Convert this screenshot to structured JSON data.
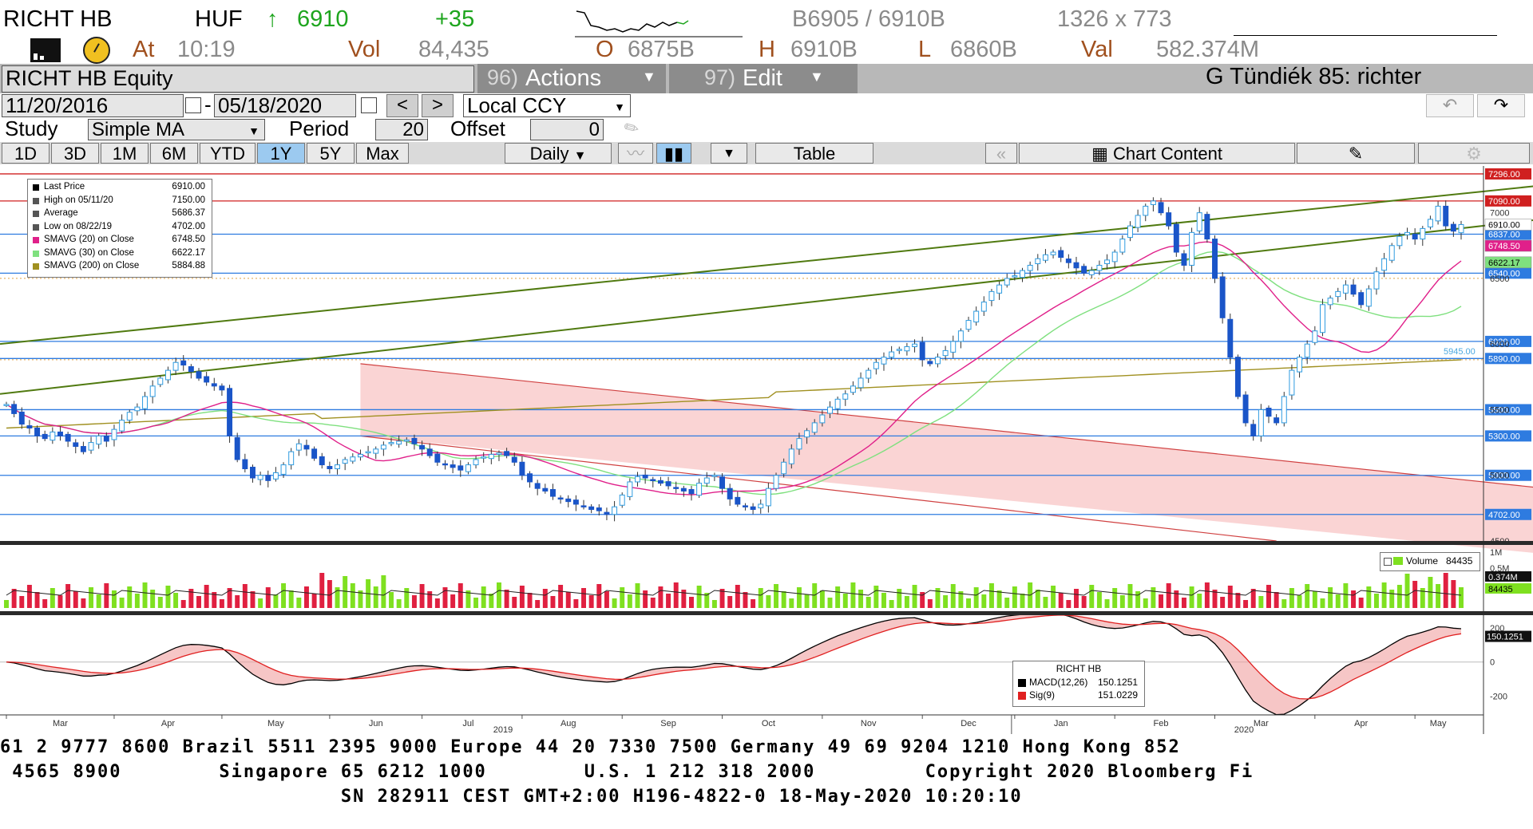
{
  "header": {
    "ticker": "RICHT HB",
    "currency": "HUF",
    "arrow": "↑",
    "last": "6910",
    "change": "+35",
    "bid_ask": "B6905 / 6910B",
    "size": "1326 x 773",
    "at_label": "At",
    "time": "10:19",
    "vol_label": "Vol",
    "vol": "84,435",
    "open_label": "O",
    "open": "6875B",
    "high_label": "H",
    "high": "6910B",
    "low_label": "L",
    "low": "6860B",
    "val_label": "Val",
    "val": "582.374M"
  },
  "toolbar": {
    "security": "RICHT HB Equity",
    "actions_num": "96)",
    "actions_label": "Actions",
    "edit_num": "97)",
    "edit_label": "Edit",
    "page_title": "G Tündiék 85: richter",
    "start_date": "11/20/2016",
    "date_sep": "-",
    "end_date": "05/18/2020",
    "prev": "<",
    "next": ">",
    "currency_mode": "Local CCY",
    "study_label": "Study",
    "study_value": "Simple MA",
    "period_label": "Period",
    "period_value": "20",
    "offset_label": "Offset",
    "offset_value": "0",
    "ranges": [
      "1D",
      "3D",
      "1M",
      "6M",
      "YTD",
      "1Y",
      "5Y",
      "Max"
    ],
    "selected_range": "1Y",
    "frequency": "Daily",
    "table_label": "Table",
    "chart_content_label": "Chart Content"
  },
  "legend": {
    "rows": [
      {
        "label": "Last Price",
        "value": "6910.00",
        "color": "#000000"
      },
      {
        "label": "High on 05/11/20",
        "value": "7150.00",
        "color": "#555555"
      },
      {
        "label": "Average",
        "value": "5686.37",
        "color": "#555555"
      },
      {
        "label": "Low on 08/22/19",
        "value": "4702.00",
        "color": "#555555"
      },
      {
        "label": "SMAVG (20)  on Close",
        "value": "6748.50",
        "color": "#e0208a"
      },
      {
        "label": "SMAVG (30)  on Close",
        "value": "6622.17",
        "color": "#7fe07f"
      },
      {
        "label": "SMAVG (200)  on Close",
        "value": "5884.88",
        "color": "#a09020"
      }
    ],
    "volume_label": "Volume",
    "volume_value": "84435",
    "macd_title": "RICHT HB",
    "macd_label": "MACD(12,26)",
    "macd_value": "150.1251",
    "sig_label": "Sig(9)",
    "sig_value": "151.0229"
  },
  "chart_data": [
    {
      "type": "candlestick",
      "title": "RICHT HB Equity",
      "x_tick_labels": [
        "Mar",
        "Apr",
        "May",
        "Jun",
        "Jul",
        "Aug",
        "Sep",
        "Oct",
        "Nov",
        "Dec",
        "Jan",
        "Feb",
        "Mar",
        "Apr",
        "May"
      ],
      "year_labels": [
        "2019",
        "2020"
      ],
      "ylim": [
        4500,
        7320
      ],
      "y_tick_labels": [
        "7000",
        "6500",
        "6000",
        "5500",
        "5000",
        "4500"
      ],
      "horizontal_lines": [
        7296,
        7090,
        6837,
        6540,
        6020,
        5890,
        5500,
        5300,
        5000,
        4702
      ],
      "horizontal_line_labels": [
        "7296.00",
        "7090.00",
        "6837.00",
        "6540.00",
        "6020.00",
        "5890.00",
        "5500.00",
        "5300.00",
        "5000.00",
        "4702.00"
      ],
      "right_badges": [
        {
          "value": 6910,
          "label": "6910.00",
          "bg": "#ffffff",
          "fg": "#000000"
        },
        {
          "value": 6748.5,
          "label": "6748.50",
          "bg": "#e0208a",
          "fg": "#ffffff"
        },
        {
          "value": 6622.17,
          "label": "6622.17",
          "bg": "#7fe07f",
          "fg": "#000000"
        }
      ],
      "annotation": "5945.00",
      "close_series": [
        {
          "month": "Mar-2019",
          "values": [
            5540,
            5470,
            5390,
            5360,
            5300,
            5280,
            5330,
            5300,
            5260,
            5220,
            5180,
            5250,
            5300,
            5260
          ]
        },
        {
          "month": "Apr-2019",
          "values": [
            5350,
            5420,
            5480,
            5520,
            5600,
            5680,
            5740,
            5800,
            5860,
            5840,
            5790,
            5740,
            5710,
            5680
          ]
        },
        {
          "month": "May-2019",
          "values": [
            5650,
            5300,
            5120,
            5050,
            4980,
            5000,
            4960,
            5020,
            5080,
            5180,
            5240,
            5200,
            5130,
            5080
          ]
        },
        {
          "month": "Jun-2019",
          "values": [
            5050,
            5080,
            5120,
            5140,
            5160,
            5180,
            5200,
            5230,
            5250,
            5260,
            5270,
            5240
          ]
        },
        {
          "month": "Jul-2019",
          "values": [
            5200,
            5150,
            5100,
            5080,
            5060,
            5040,
            5080,
            5120,
            5140,
            5160,
            5170,
            5150,
            5100
          ]
        },
        {
          "month": "Aug-2019",
          "values": [
            5000,
            4950,
            4900,
            4880,
            4840,
            4820,
            4800,
            4780,
            4760,
            4740,
            4730,
            4702,
            4760
          ]
        },
        {
          "month": "Sep-2019",
          "values": [
            4850,
            4950,
            4990,
            4980,
            4960,
            4940,
            4920,
            4900,
            4880,
            4860,
            4940,
            4980,
            5000
          ]
        },
        {
          "month": "Oct-2019",
          "values": [
            4900,
            4820,
            4780,
            4760,
            4740,
            4780,
            4900,
            5000,
            5100,
            5200,
            5280,
            5340,
            5400
          ]
        },
        {
          "month": "Nov-2019",
          "values": [
            5460,
            5520,
            5580,
            5620,
            5680,
            5740,
            5800,
            5860,
            5900,
            5940,
            5960,
            5980,
            6000
          ]
        },
        {
          "month": "Dec-2019",
          "values": [
            5880,
            5850,
            5900,
            5950,
            6020,
            6100,
            6180,
            6250,
            6320,
            6400,
            6450,
            6500
          ]
        },
        {
          "month": "Jan-2020",
          "values": [
            6520,
            6560,
            6600,
            6650,
            6680,
            6700,
            6660,
            6620,
            6580,
            6540,
            6560,
            6600,
            6640
          ]
        },
        {
          "month": "Feb-2020",
          "values": [
            6700,
            6800,
            6900,
            6980,
            7050,
            7090,
            7000,
            6900,
            6700,
            6600,
            6850,
            7000,
            6800
          ]
        },
        {
          "month": "Mar-2020",
          "values": [
            6500,
            6200,
            5900,
            5600,
            5400,
            5300,
            5500,
            5450,
            5400,
            5600,
            5800,
            5900,
            6000
          ]
        },
        {
          "month": "Apr-2020",
          "values": [
            6100,
            6300,
            6350,
            6400,
            6450,
            6380,
            6300,
            6420,
            6550,
            6650,
            6750,
            6820,
            6850
          ]
        },
        {
          "month": "May-2020",
          "values": [
            6800,
            6880,
            6950,
            7050,
            6900,
            6860,
            6910
          ]
        }
      ],
      "sma": [
        {
          "name": "SMAVG (20)  on Close",
          "last": 6748.5
        },
        {
          "name": "SMAVG (30)  on Close",
          "last": 6622.17
        },
        {
          "name": "SMAVG (200)  on Close",
          "last": 5884.88
        }
      ]
    },
    {
      "type": "bar",
      "title": "Volume",
      "y_tick_labels": [
        "1M",
        "0.5M"
      ],
      "last_badges": [
        "0.374M",
        "84435"
      ]
    },
    {
      "type": "line",
      "title": "RICHT HB",
      "y_tick_labels": [
        "200",
        "0",
        "-200"
      ],
      "last_badges": [
        "150.1251"
      ],
      "series": [
        {
          "name": "MACD(12,26)",
          "last": 150.1251
        },
        {
          "name": "Sig(9)",
          "last": 151.0229
        }
      ]
    }
  ],
  "footer": {
    "line1": "61 2 9777 8600 Brazil 5511 2395 9000 Europe 44 20 7330 7500 Germany 49 69 9204 1210 Hong Kong 852",
    "line2": " 4565 8900        Singapore 65 6212 1000        U.S. 1 212 318 2000         Copyright 2020 Bloomberg Fi",
    "line3": "                            SN 282911 CEST GMT+2:00 H196-4822-0 18-May-2020 10:20:10"
  },
  "colors": {
    "up_candle": "#2e9be0",
    "down_candle": "#1a55c8",
    "level_red": "#d02020",
    "level_blue": "#2e7be0",
    "trend_green": "#507a10",
    "channel_fill": "#f8c6c6"
  }
}
